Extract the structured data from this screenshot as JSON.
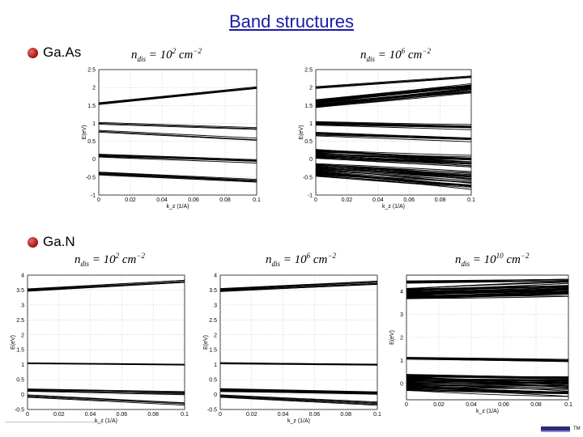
{
  "slide": {
    "title": "Band structures"
  },
  "materials": [
    {
      "name": "GaAs",
      "label": "Ga.As"
    },
    {
      "name": "GaN",
      "label": "Ga.N"
    }
  ],
  "equations": {
    "gaas_1": {
      "base": "n",
      "sub": "dis",
      "rhs": "= 10",
      "exp": "2",
      "unit": " cm",
      "uexp": "−2"
    },
    "gaas_2": {
      "base": "n",
      "sub": "dis",
      "rhs": "= 10",
      "exp": "6",
      "unit": " cm",
      "uexp": "−2"
    },
    "gan_1": {
      "base": "n",
      "sub": "dis",
      "rhs": "= 10",
      "exp": "2",
      "unit": " cm",
      "uexp": "−2"
    },
    "gan_2": {
      "base": "n",
      "sub": "dis",
      "rhs": "= 10",
      "exp": "6",
      "unit": " cm",
      "uexp": "−2"
    },
    "gan_3": {
      "base": "n",
      "sub": "dis",
      "rhs": "= 10",
      "exp": "10",
      "unit": " cm",
      "uexp": "−2"
    }
  },
  "footer": {
    "tm": "TM"
  },
  "chart_data": [
    {
      "id": "gaas-low",
      "type": "line",
      "material": "GaAs",
      "xlabel": "k_z (1/A)",
      "ylabel": "E(eV)",
      "xlim": [
        0,
        0.1
      ],
      "ylim": [
        -1,
        2.5
      ],
      "xticks": [
        "0",
        "0.02",
        "0.04",
        "0.06",
        "0.08",
        "0.1"
      ],
      "yticks": [
        "-1",
        "-0.5",
        "0",
        "0.5",
        "1",
        "1.5",
        "2",
        "2.5"
      ],
      "bands": [
        {
          "y0": 1.55,
          "y1": 2.0,
          "count": 6,
          "spread": 0.05
        },
        {
          "y0": 1.0,
          "y1": 0.85,
          "count": 3,
          "spread": 0.05
        },
        {
          "y0": 0.78,
          "y1": 0.55,
          "count": 3,
          "spread": 0.05
        },
        {
          "y0": 0.1,
          "y1": -0.05,
          "count": 6,
          "spread": 0.08
        },
        {
          "y0": -0.4,
          "y1": -0.6,
          "count": 6,
          "spread": 0.08
        }
      ]
    },
    {
      "id": "gaas-high",
      "type": "line",
      "material": "GaAs",
      "xlabel": "k_z (1/A)",
      "ylabel": "E(eV)",
      "xlim": [
        0,
        0.1
      ],
      "ylim": [
        -1,
        2.5
      ],
      "xticks": [
        "0",
        "0.02",
        "0.04",
        "0.06",
        "0.08",
        "0.1"
      ],
      "yticks": [
        "-1",
        "-0.5",
        "0",
        "0.5",
        "1",
        "1.5",
        "2",
        "2.5"
      ],
      "bands": [
        {
          "y0": 1.55,
          "y1": 2.0,
          "count": 24,
          "spread": 0.22
        },
        {
          "y0": 2.0,
          "y1": 2.3,
          "count": 4,
          "spread": 0.05
        },
        {
          "y0": 1.0,
          "y1": 0.9,
          "count": 8,
          "spread": 0.1
        },
        {
          "y0": 0.7,
          "y1": 0.55,
          "count": 6,
          "spread": 0.1
        },
        {
          "y0": 0.15,
          "y1": -0.05,
          "count": 24,
          "spread": 0.25
        },
        {
          "y0": -0.3,
          "y1": -0.6,
          "count": 30,
          "spread": 0.35
        }
      ]
    },
    {
      "id": "gan-low",
      "type": "line",
      "material": "GaN",
      "xlabel": "k_z (1/A)",
      "ylabel": "E(eV)",
      "xlim": [
        0,
        0.1
      ],
      "ylim": [
        -0.5,
        4
      ],
      "xticks": [
        "0",
        "0.02",
        "0.04",
        "0.06",
        "0.08",
        "0.1"
      ],
      "yticks": [
        "-0.5",
        "0",
        "0.5",
        "1",
        "1.5",
        "2",
        "2.5",
        "3",
        "3.5",
        "4"
      ],
      "bands": [
        {
          "y0": 3.5,
          "y1": 3.8,
          "count": 6,
          "spread": 0.08
        },
        {
          "y0": 1.05,
          "y1": 1.0,
          "count": 4,
          "spread": 0.03
        },
        {
          "y0": 0.15,
          "y1": 0.05,
          "count": 6,
          "spread": 0.08
        },
        {
          "y0": -0.05,
          "y1": -0.3,
          "count": 4,
          "spread": 0.08
        }
      ]
    },
    {
      "id": "gan-mid",
      "type": "line",
      "material": "GaN",
      "xlabel": "k_z (1/A)",
      "ylabel": "E(eV)",
      "xlim": [
        0,
        0.1
      ],
      "ylim": [
        -0.5,
        4
      ],
      "xticks": [
        "0",
        "0.02",
        "0.04",
        "0.06",
        "0.08",
        "0.1"
      ],
      "yticks": [
        "-0.5",
        "0",
        "0.5",
        "1",
        "1.5",
        "2",
        "2.5",
        "3",
        "3.5",
        "4"
      ],
      "bands": [
        {
          "y0": 3.5,
          "y1": 3.75,
          "count": 8,
          "spread": 0.1
        },
        {
          "y0": 1.05,
          "y1": 1.0,
          "count": 5,
          "spread": 0.04
        },
        {
          "y0": 0.15,
          "y1": 0.05,
          "count": 8,
          "spread": 0.1
        },
        {
          "y0": -0.05,
          "y1": -0.3,
          "count": 5,
          "spread": 0.08
        }
      ]
    },
    {
      "id": "gan-high",
      "type": "line",
      "material": "GaN",
      "xlabel": "k_z (1/A)",
      "ylabel": "E(eV)",
      "xlim": [
        0,
        0.1
      ],
      "ylim": [
        -0.7,
        4.7
      ],
      "xticks": [
        "0",
        "0.02",
        "0.04",
        "0.06",
        "0.08",
        "0.1"
      ],
      "yticks": [
        "0",
        "1",
        "2",
        "3",
        "4"
      ],
      "bands": [
        {
          "y0": 3.9,
          "y1": 4.1,
          "count": 40,
          "spread": 0.45
        },
        {
          "y0": 4.4,
          "y1": 4.5,
          "count": 6,
          "spread": 0.1
        },
        {
          "y0": 1.1,
          "y1": 1.0,
          "count": 8,
          "spread": 0.08
        },
        {
          "y0": 0.3,
          "y1": 0.2,
          "count": 10,
          "spread": 0.2
        },
        {
          "y0": 0.0,
          "y1": -0.15,
          "count": 40,
          "spread": 0.6
        }
      ]
    }
  ]
}
